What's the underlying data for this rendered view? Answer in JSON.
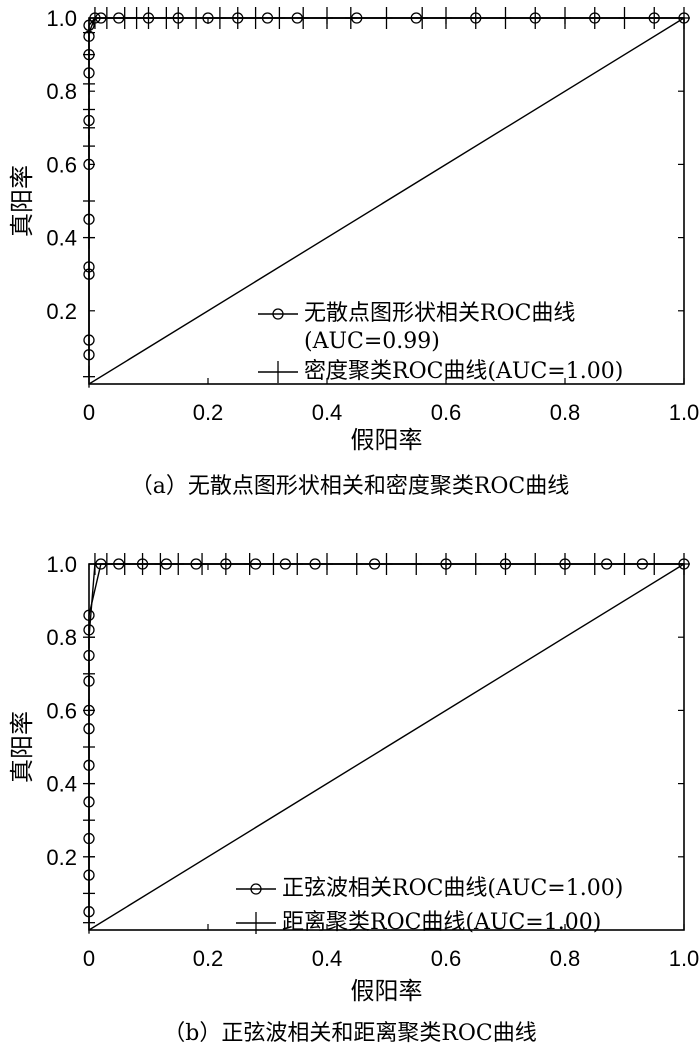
{
  "chart_data": [
    {
      "type": "line",
      "caption": "（a）无散点图形状相关和密度聚类ROC曲线",
      "xlabel": "假阳率",
      "ylabel": "真阳率",
      "xlim": [
        0,
        1
      ],
      "ylim": [
        0,
        1
      ],
      "x_ticks": [
        "0",
        "0.2",
        "0.4",
        "0.6",
        "0.8",
        "1.0"
      ],
      "y_ticks": [
        "0.2",
        "0.4",
        "0.6",
        "0.8",
        "1.0"
      ],
      "legend_position": "bottom-right",
      "diagonal": {
        "x": [
          0,
          1
        ],
        "y": [
          0,
          1
        ]
      },
      "series": [
        {
          "name": "无散点图形状相关ROC曲线\n(AUC=0.99)",
          "marker": "circle",
          "x": [
            0,
            0,
            0,
            0,
            0,
            0,
            0,
            0,
            0,
            0,
            0,
            0.01,
            0.02,
            0.05,
            0.1,
            0.15,
            0.2,
            0.25,
            0.3,
            0.35,
            0.45,
            0.55,
            0.65,
            0.75,
            0.85,
            0.95,
            1.0
          ],
          "y": [
            0.08,
            0.12,
            0.3,
            0.32,
            0.45,
            0.6,
            0.72,
            0.85,
            0.9,
            0.95,
            0.98,
            1.0,
            1.0,
            1.0,
            1.0,
            1.0,
            1.0,
            1.0,
            1.0,
            1.0,
            1.0,
            1.0,
            1.0,
            1.0,
            1.0,
            1.0,
            1.0
          ]
        },
        {
          "name": "密度聚类ROC曲线(AUC=1.00)",
          "marker": "plus",
          "x": [
            0,
            0,
            0,
            0,
            0,
            0,
            0,
            0,
            0,
            0.01,
            0.03,
            0.06,
            0.08,
            0.1,
            0.13,
            0.15,
            0.18,
            0.22,
            0.25,
            0.28,
            0.32,
            0.36,
            0.4,
            0.44,
            0.5,
            0.56,
            0.6,
            0.65,
            0.7,
            0.75,
            0.8,
            0.85,
            0.9,
            0.95,
            1.0
          ],
          "y": [
            0.02,
            0.4,
            0.5,
            0.65,
            0.7,
            0.75,
            0.82,
            0.9,
            0.96,
            1.0,
            1.0,
            1.0,
            1.0,
            1.0,
            1.0,
            1.0,
            1.0,
            1.0,
            1.0,
            1.0,
            1.0,
            1.0,
            1.0,
            1.0,
            1.0,
            1.0,
            1.0,
            1.0,
            1.0,
            1.0,
            1.0,
            1.0,
            1.0,
            1.0,
            1.0
          ]
        }
      ]
    },
    {
      "type": "line",
      "caption": "（b）正弦波相关和距离聚类ROC曲线",
      "xlabel": "假阳率",
      "ylabel": "真阳率",
      "xlim": [
        0,
        1
      ],
      "ylim": [
        0,
        1
      ],
      "x_ticks": [
        "0",
        "0.2",
        "0.4",
        "0.6",
        "0.8",
        "1.0"
      ],
      "y_ticks": [
        "0.2",
        "0.4",
        "0.6",
        "0.8",
        "1.0"
      ],
      "legend_position": "bottom-right",
      "diagonal": {
        "x": [
          0,
          1
        ],
        "y": [
          0,
          1
        ]
      },
      "series": [
        {
          "name": "正弦波相关ROC曲线(AUC=1.00)",
          "marker": "circle",
          "x": [
            0,
            0,
            0,
            0,
            0,
            0,
            0,
            0,
            0,
            0,
            0,
            0.02,
            0.05,
            0.09,
            0.13,
            0.18,
            0.23,
            0.28,
            0.33,
            0.38,
            0.48,
            0.6,
            0.7,
            0.8,
            0.87,
            0.93,
            1.0
          ],
          "y": [
            0.05,
            0.15,
            0.25,
            0.35,
            0.45,
            0.55,
            0.6,
            0.68,
            0.75,
            0.82,
            0.86,
            1.0,
            1.0,
            1.0,
            1.0,
            1.0,
            1.0,
            1.0,
            1.0,
            1.0,
            1.0,
            1.0,
            1.0,
            1.0,
            1.0,
            1.0,
            1.0
          ]
        },
        {
          "name": "距离聚类ROC曲线(AUC=1.00)",
          "marker": "plus",
          "x": [
            0,
            0,
            0,
            0,
            0,
            0,
            0,
            0,
            0,
            0.01,
            0.03,
            0.06,
            0.09,
            0.12,
            0.15,
            0.19,
            0.23,
            0.27,
            0.31,
            0.35,
            0.4,
            0.45,
            0.5,
            0.55,
            0.6,
            0.65,
            0.7,
            0.75,
            0.8,
            0.85,
            0.9,
            0.95,
            1.0
          ],
          "y": [
            0.02,
            0.1,
            0.2,
            0.3,
            0.4,
            0.5,
            0.6,
            0.7,
            0.8,
            1.0,
            1.0,
            1.0,
            1.0,
            1.0,
            1.0,
            1.0,
            1.0,
            1.0,
            1.0,
            1.0,
            1.0,
            1.0,
            1.0,
            1.0,
            1.0,
            1.0,
            1.0,
            1.0,
            1.0,
            1.0,
            1.0,
            1.0,
            1.0
          ]
        }
      ]
    }
  ]
}
